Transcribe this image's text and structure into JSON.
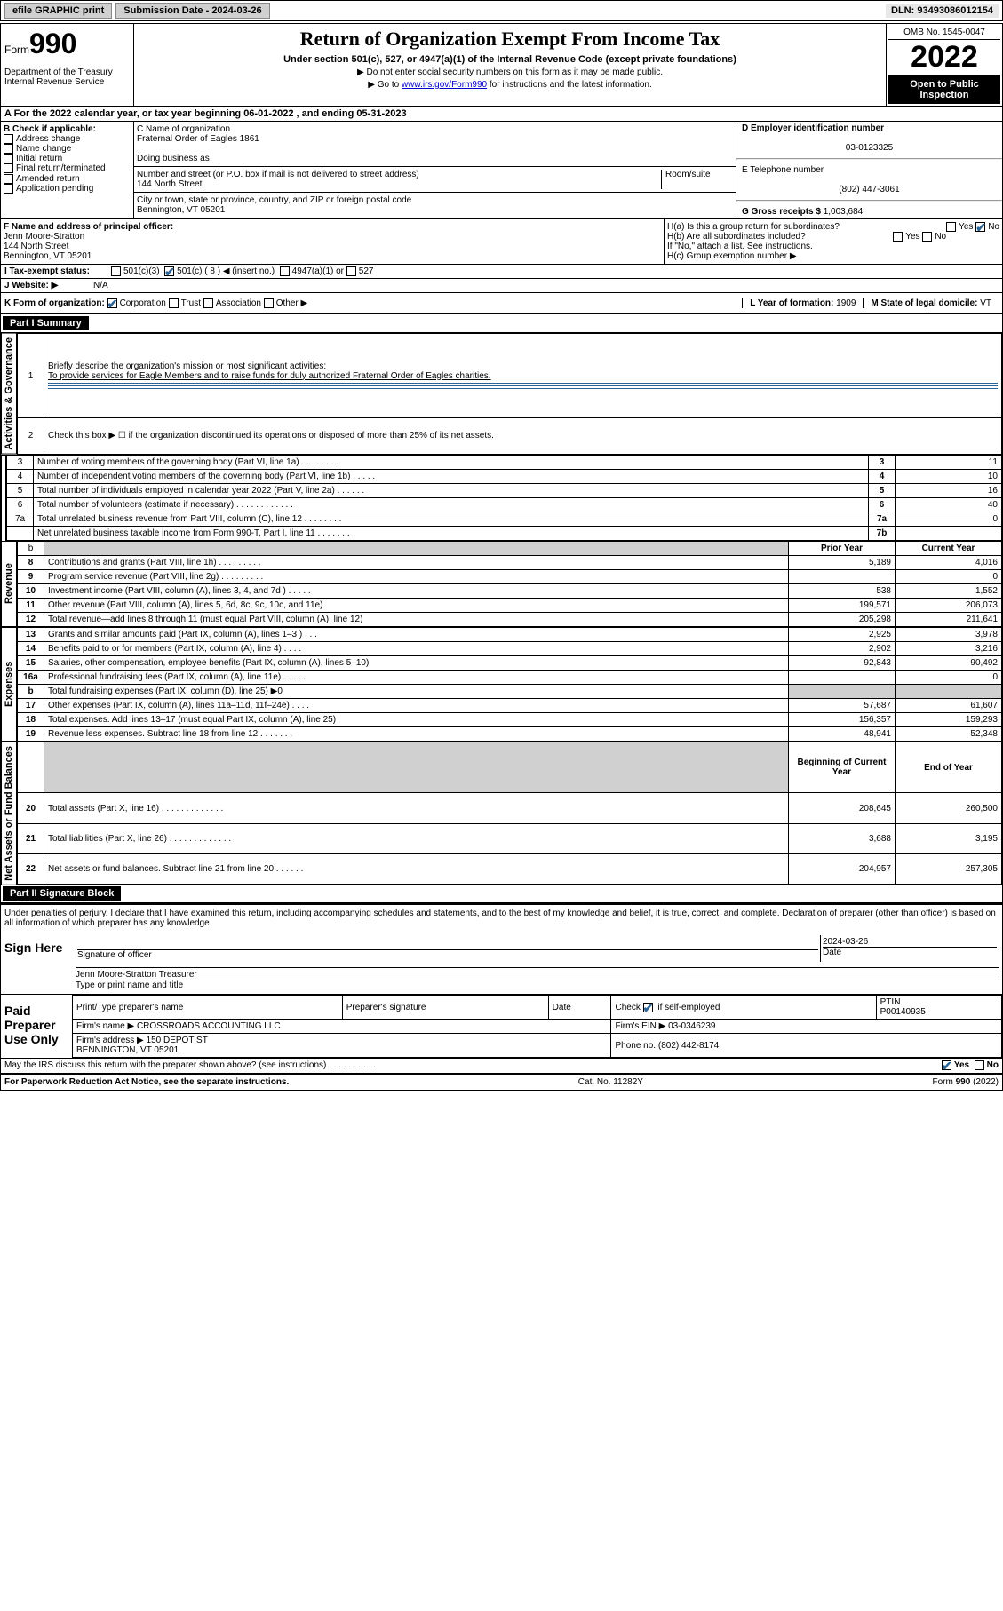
{
  "topbar": {
    "efile": "efile GRAPHIC print",
    "submission_label": "Submission Date - 2024-03-26",
    "dln": "DLN: 93493086012154"
  },
  "header": {
    "form_prefix": "Form",
    "form_number": "990",
    "dept": "Department of the Treasury\nInternal Revenue Service",
    "title": "Return of Organization Exempt From Income Tax",
    "subtitle": "Under section 501(c), 527, or 4947(a)(1) of the Internal Revenue Code (except private foundations)",
    "note1": "▶ Do not enter social security numbers on this form as it may be made public.",
    "note2_pre": "▶ Go to ",
    "note2_link": "www.irs.gov/Form990",
    "note2_post": " for instructions and the latest information.",
    "omb": "OMB No. 1545-0047",
    "year": "2022",
    "inspection": "Open to Public Inspection"
  },
  "period": {
    "text": "A For the 2022 calendar year, or tax year beginning 06-01-2022   , and ending 05-31-2023"
  },
  "colB": {
    "label": "B Check if applicable:",
    "opts": [
      "Address change",
      "Name change",
      "Initial return",
      "Final return/terminated",
      "Amended return",
      "Application pending"
    ]
  },
  "colC": {
    "name_label": "C Name of organization",
    "name": "Fraternal Order of Eagles 1861",
    "dba_label": "Doing business as",
    "dba": "",
    "addr_label": "Number and street (or P.O. box if mail is not delivered to street address)",
    "room_label": "Room/suite",
    "addr": "144 North Street",
    "city_label": "City or town, state or province, country, and ZIP or foreign postal code",
    "city": "Bennington, VT  05201"
  },
  "colD": {
    "ein_label": "D Employer identification number",
    "ein": "03-0123325",
    "tel_label": "E Telephone number",
    "tel": "(802) 447-3061",
    "gross_label": "G Gross receipts $",
    "gross": "1,003,684"
  },
  "rowF": {
    "label": "F Name and address of principal officer:",
    "name": "Jenn Moore-Stratton",
    "addr1": "144 North Street",
    "addr2": "Bennington, VT  05201"
  },
  "rowH": {
    "ha": "H(a)  Is this a group return for subordinates?",
    "hb": "H(b)  Are all subordinates included?",
    "hb_note": "If \"No,\" attach a list. See instructions.",
    "hc": "H(c)  Group exemption number ▶"
  },
  "rowI": {
    "label": "I   Tax-exempt status:",
    "c3": "501(c)(3)",
    "c": "501(c) ( 8 ) ◀ (insert no.)",
    "a1": "4947(a)(1) or",
    "s527": "527"
  },
  "rowJ": {
    "label": "J   Website: ▶",
    "val": "N/A"
  },
  "rowK": {
    "label": "K Form of organization:",
    "opts": [
      "Corporation",
      "Trust",
      "Association",
      "Other ▶"
    ]
  },
  "rowL": {
    "label": "L Year of formation:",
    "val": "1909"
  },
  "rowM": {
    "label": "M State of legal domicile:",
    "val": "VT"
  },
  "part1": {
    "header": "Part I      Summary",
    "q1": "Briefly describe the organization's mission or most significant activities:",
    "mission": "To provide services for Eagle Members and to raise funds for duly authorized Fraternal Order of Eagles charities.",
    "q2": "Check this box ▶ ☐  if the organization discontinued its operations or disposed of more than 25% of its net assets.",
    "sections": {
      "gov": "Activities & Governance",
      "rev": "Revenue",
      "exp": "Expenses",
      "net": "Net Assets or Fund Balances"
    },
    "col_headers": {
      "prior": "Prior Year",
      "current": "Current Year",
      "begin": "Beginning of Current Year",
      "end": "End of Year"
    },
    "lines_single": [
      {
        "n": "3",
        "desc": "Number of voting members of the governing body (Part VI, line 1a)  .    .    .    .    .    .    .    .",
        "box": "3",
        "val": "11"
      },
      {
        "n": "4",
        "desc": "Number of independent voting members of the governing body (Part VI, line 1b)  .    .    .    .    .",
        "box": "4",
        "val": "10"
      },
      {
        "n": "5",
        "desc": "Total number of individuals employed in calendar year 2022 (Part V, line 2a)  .    .    .    .    .    .",
        "box": "5",
        "val": "16"
      },
      {
        "n": "6",
        "desc": "Total number of volunteers (estimate if necessary)  .    .    .    .    .    .    .    .    .    .    .    .",
        "box": "6",
        "val": "40"
      },
      {
        "n": "7a",
        "desc": "Total unrelated business revenue from Part VIII, column (C), line 12  .    .    .    .    .    .    .    .",
        "box": "7a",
        "val": "0"
      },
      {
        "n": "",
        "desc": "Net unrelated business taxable income from Form 990-T, Part I, line 11  .    .    .    .    .    .    .",
        "box": "7b",
        "val": ""
      }
    ],
    "lines_rev": [
      {
        "n": "8",
        "desc": "Contributions and grants (Part VIII, line 1h)  .    .    .    .    .    .    .    .    .",
        "p": "5,189",
        "c": "4,016"
      },
      {
        "n": "9",
        "desc": "Program service revenue (Part VIII, line 2g)  .    .    .    .    .    .    .    .    .",
        "p": "",
        "c": "0"
      },
      {
        "n": "10",
        "desc": "Investment income (Part VIII, column (A), lines 3, 4, and 7d )  .    .    .    .    .",
        "p": "538",
        "c": "1,552"
      },
      {
        "n": "11",
        "desc": "Other revenue (Part VIII, column (A), lines 5, 6d, 8c, 9c, 10c, and 11e)",
        "p": "199,571",
        "c": "206,073"
      },
      {
        "n": "12",
        "desc": "Total revenue—add lines 8 through 11 (must equal Part VIII, column (A), line 12)",
        "p": "205,298",
        "c": "211,641"
      }
    ],
    "lines_exp": [
      {
        "n": "13",
        "desc": "Grants and similar amounts paid (Part IX, column (A), lines 1–3 )  .    .    .",
        "p": "2,925",
        "c": "3,978"
      },
      {
        "n": "14",
        "desc": "Benefits paid to or for members (Part IX, column (A), line 4)  .    .    .    .",
        "p": "2,902",
        "c": "3,216"
      },
      {
        "n": "15",
        "desc": "Salaries, other compensation, employee benefits (Part IX, column (A), lines 5–10)",
        "p": "92,843",
        "c": "90,492"
      },
      {
        "n": "16a",
        "desc": "Professional fundraising fees (Part IX, column (A), line 11e)  .    .    .    .    .",
        "p": "",
        "c": "0"
      },
      {
        "n": "b",
        "desc": "Total fundraising expenses (Part IX, column (D), line 25) ▶0",
        "p": "__shaded__",
        "c": "__shaded__"
      },
      {
        "n": "17",
        "desc": "Other expenses (Part IX, column (A), lines 11a–11d, 11f–24e)  .    .    .    .",
        "p": "57,687",
        "c": "61,607"
      },
      {
        "n": "18",
        "desc": "Total expenses. Add lines 13–17 (must equal Part IX, column (A), line 25)",
        "p": "156,357",
        "c": "159,293"
      },
      {
        "n": "19",
        "desc": "Revenue less expenses. Subtract line 18 from line 12  .    .    .    .    .    .    .",
        "p": "48,941",
        "c": "52,348"
      }
    ],
    "lines_net": [
      {
        "n": "20",
        "desc": "Total assets (Part X, line 16)  .    .    .    .    .    .    .    .    .    .    .    .    .",
        "p": "208,645",
        "c": "260,500"
      },
      {
        "n": "21",
        "desc": "Total liabilities (Part X, line 26)  .    .    .    .    .    .    .    .    .    .    .    .    .",
        "p": "3,688",
        "c": "3,195"
      },
      {
        "n": "22",
        "desc": "Net assets or fund balances. Subtract line 21 from line 20  .    .    .    .    .    .",
        "p": "204,957",
        "c": "257,305"
      }
    ]
  },
  "part2": {
    "header": "Part II     Signature Block",
    "declaration": "Under penalties of perjury, I declare that I have examined this return, including accompanying schedules and statements, and to the best of my knowledge and belief, it is true, correct, and complete. Declaration of preparer (other than officer) is based on all information of which preparer has any knowledge.",
    "sign_here": "Sign Here",
    "sig_officer": "Signature of officer",
    "date_label": "Date",
    "date": "2024-03-26",
    "officer_name": "Jenn Moore-Stratton  Treasurer",
    "type_name": "Type or print name and title",
    "paid": "Paid Preparer Use Only",
    "prep_name_label": "Print/Type preparer's name",
    "prep_sig_label": "Preparer's signature",
    "prep_date_label": "Date",
    "self_emp": "Check ☑ if self-employed",
    "ptin_label": "PTIN",
    "ptin": "P00140935",
    "firm_name_label": "Firm's name    ▶",
    "firm_name": "CROSSROADS ACCOUNTING LLC",
    "firm_ein_label": "Firm's EIN ▶",
    "firm_ein": "03-0346239",
    "firm_addr_label": "Firm's address ▶",
    "firm_addr": "150 DEPOT ST\nBENNINGTON, VT  05201",
    "firm_phone_label": "Phone no.",
    "firm_phone": "(802) 442-8174",
    "discuss": "May the IRS discuss this return with the preparer shown above? (see instructions)  .    .    .    .    .    .    .    .    .    .",
    "yes": "Yes",
    "no": "No"
  },
  "footer": {
    "paperwork": "For Paperwork Reduction Act Notice, see the separate instructions.",
    "cat": "Cat. No. 11282Y",
    "form": "Form 990 (2022)"
  }
}
